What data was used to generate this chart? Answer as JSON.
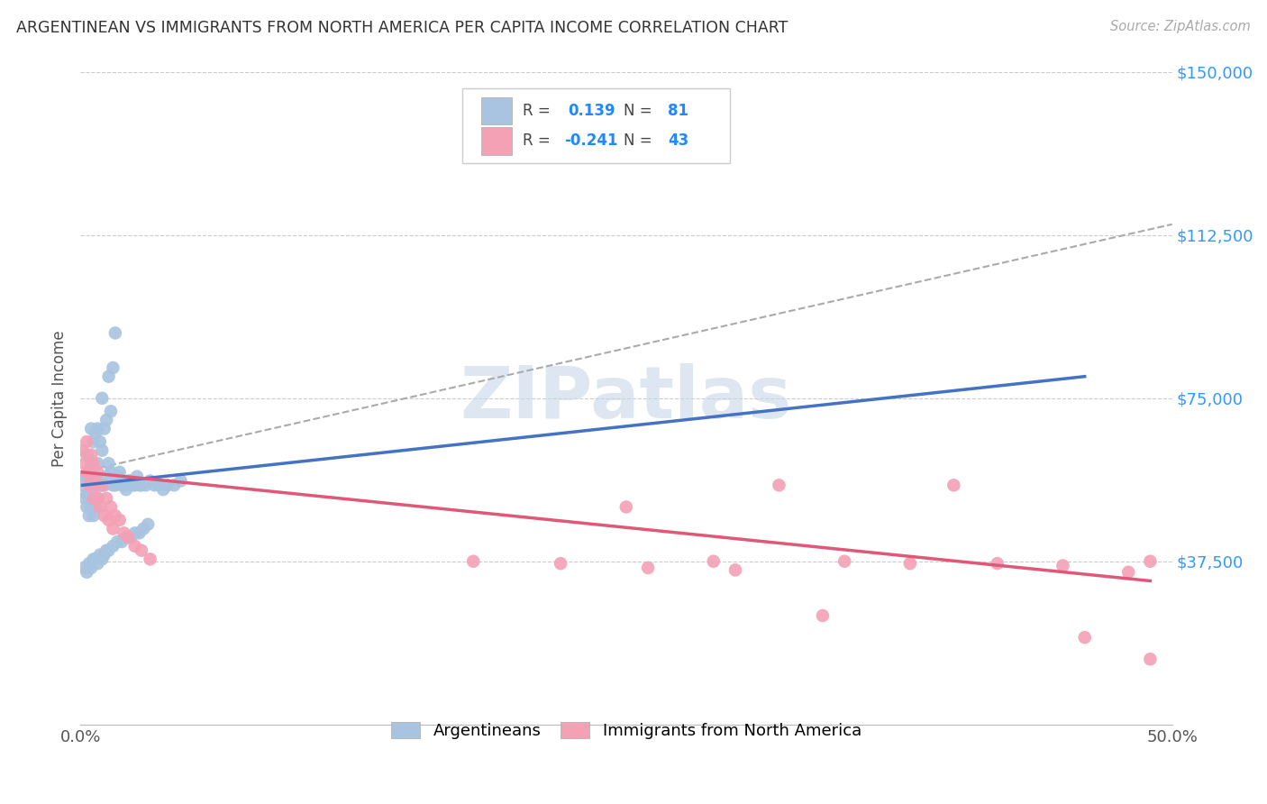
{
  "title": "ARGENTINEAN VS IMMIGRANTS FROM NORTH AMERICA PER CAPITA INCOME CORRELATION CHART",
  "source": "Source: ZipAtlas.com",
  "ylabel": "Per Capita Income",
  "xlim": [
    0.0,
    0.5
  ],
  "ylim": [
    0,
    150000
  ],
  "yticks": [
    0,
    37500,
    75000,
    112500,
    150000
  ],
  "ytick_labels": [
    "",
    "$37,500",
    "$75,000",
    "$112,500",
    "$150,000"
  ],
  "xticks": [
    0.0,
    0.1,
    0.2,
    0.3,
    0.4,
    0.5
  ],
  "xtick_labels": [
    "0.0%",
    "",
    "",
    "",
    "",
    "50.0%"
  ],
  "background_color": "#ffffff",
  "grid_color": "#cccccc",
  "watermark_text": "ZIPatlas",
  "watermark_color": "#c8d8e8",
  "blue_color": "#a8c4e0",
  "pink_color": "#f4a0b5",
  "blue_line_color": "#4472c4",
  "pink_line_color": "#e05878",
  "dashed_line_color": "#aaaaaa",
  "legend_label_blue": "Argentineans",
  "legend_label_pink": "Immigrants from North America",
  "blue_scatter_x": [
    0.001,
    0.002,
    0.002,
    0.003,
    0.003,
    0.003,
    0.003,
    0.004,
    0.004,
    0.004,
    0.005,
    0.005,
    0.005,
    0.005,
    0.006,
    0.006,
    0.006,
    0.007,
    0.007,
    0.007,
    0.008,
    0.008,
    0.008,
    0.009,
    0.009,
    0.01,
    0.01,
    0.01,
    0.011,
    0.011,
    0.012,
    0.012,
    0.013,
    0.013,
    0.014,
    0.014,
    0.015,
    0.015,
    0.016,
    0.016,
    0.017,
    0.018,
    0.019,
    0.02,
    0.021,
    0.022,
    0.023,
    0.024,
    0.025,
    0.026,
    0.027,
    0.028,
    0.03,
    0.032,
    0.034,
    0.036,
    0.038,
    0.04,
    0.043,
    0.046,
    0.002,
    0.003,
    0.004,
    0.005,
    0.006,
    0.007,
    0.008,
    0.009,
    0.01,
    0.011,
    0.012,
    0.013,
    0.015,
    0.017,
    0.019,
    0.021,
    0.023,
    0.025,
    0.027,
    0.029,
    0.031
  ],
  "blue_scatter_y": [
    55000,
    52000,
    57000,
    50000,
    53000,
    57000,
    62000,
    48000,
    53000,
    58000,
    50000,
    55000,
    60000,
    68000,
    48000,
    54000,
    65000,
    50000,
    57000,
    67000,
    52000,
    60000,
    68000,
    55000,
    65000,
    55000,
    63000,
    75000,
    55000,
    68000,
    57000,
    70000,
    60000,
    80000,
    58000,
    72000,
    55000,
    82000,
    55000,
    90000,
    57000,
    58000,
    55000,
    55000,
    54000,
    56000,
    56000,
    55000,
    55000,
    57000,
    55000,
    55000,
    55000,
    56000,
    55000,
    55000,
    54000,
    55000,
    55000,
    56000,
    36000,
    35000,
    37000,
    36000,
    38000,
    38000,
    37000,
    39000,
    38000,
    39000,
    40000,
    40000,
    41000,
    42000,
    42000,
    43000,
    43000,
    44000,
    44000,
    45000,
    46000
  ],
  "pink_scatter_x": [
    0.001,
    0.002,
    0.003,
    0.003,
    0.004,
    0.005,
    0.005,
    0.006,
    0.006,
    0.007,
    0.008,
    0.008,
    0.009,
    0.01,
    0.011,
    0.012,
    0.013,
    0.014,
    0.015,
    0.016,
    0.018,
    0.02,
    0.022,
    0.025,
    0.028,
    0.032,
    0.18,
    0.22,
    0.26,
    0.3,
    0.32,
    0.35,
    0.38,
    0.4,
    0.42,
    0.45,
    0.46,
    0.48,
    0.49,
    0.25,
    0.29,
    0.34,
    0.49
  ],
  "pink_scatter_y": [
    63000,
    60000,
    58000,
    65000,
    55000,
    57000,
    62000,
    52000,
    60000,
    55000,
    52000,
    58000,
    50000,
    55000,
    48000,
    52000,
    47000,
    50000,
    45000,
    48000,
    47000,
    44000,
    43000,
    41000,
    40000,
    38000,
    37500,
    37000,
    36000,
    35500,
    55000,
    37500,
    37000,
    55000,
    37000,
    36500,
    20000,
    35000,
    37500,
    50000,
    37500,
    25000,
    15000
  ],
  "blue_line_x0": 0.001,
  "blue_line_y0": 55000,
  "blue_line_x1": 0.46,
  "blue_line_y1": 80000,
  "pink_line_x0": 0.001,
  "pink_line_y0": 58000,
  "pink_line_x1": 0.49,
  "pink_line_y1": 33000,
  "dash_line_x0": 0.0,
  "dash_line_y0": 58000,
  "dash_line_x1": 0.5,
  "dash_line_y1": 115000
}
